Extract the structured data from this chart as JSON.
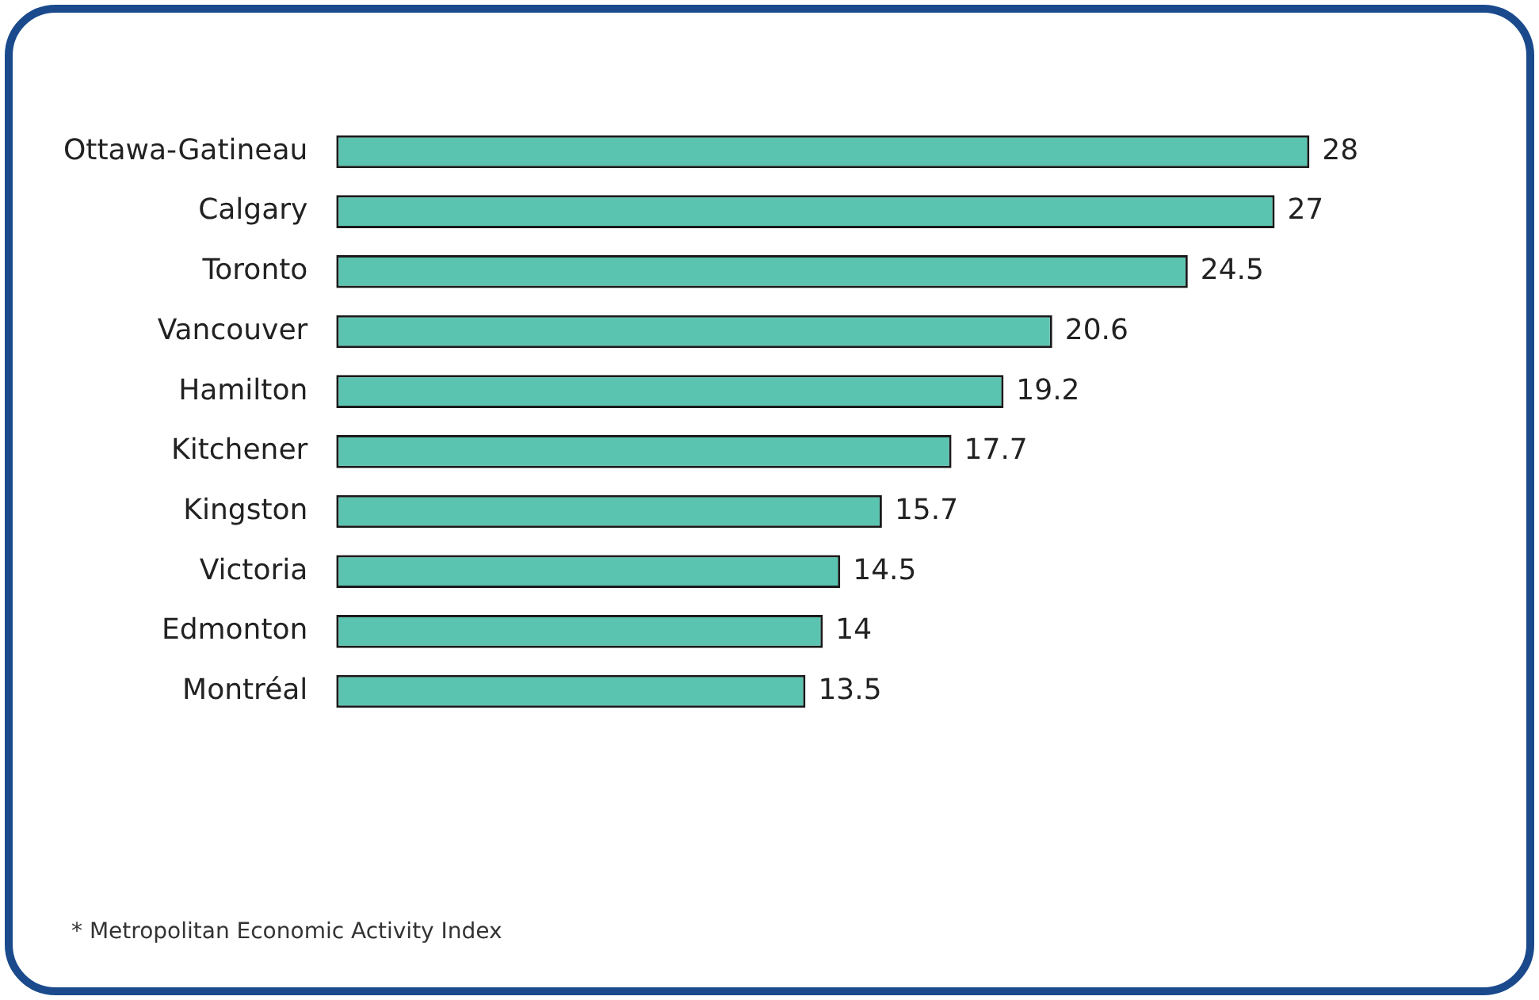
{
  "chart_data": {
    "type": "bar",
    "orientation": "horizontal",
    "categories": [
      "Ottawa-Gatineau",
      "Calgary",
      "Toronto",
      "Vancouver",
      "Hamilton",
      "Kitchener",
      "Kingston",
      "Victoria",
      "Edmonton",
      "Montréal"
    ],
    "values": [
      28,
      27,
      24.5,
      20.6,
      19.2,
      17.7,
      15.7,
      14.5,
      14,
      13.5
    ],
    "color": "#5bc4b1",
    "data_labels": true,
    "annotations": [
      "* Metropolitan Economic Activity Index"
    ]
  }
}
